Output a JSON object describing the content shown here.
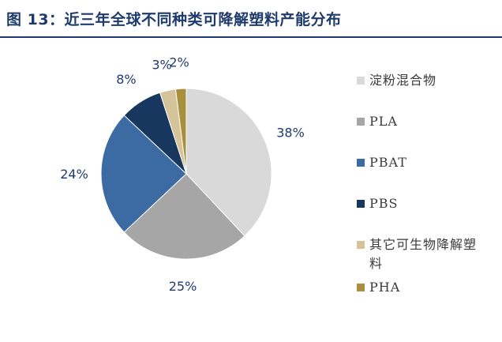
{
  "figure": {
    "title": "图 13：近三年全球不同种类可降解塑料产能分布"
  },
  "chart_data": {
    "type": "pie",
    "title": "",
    "categories": [
      "淀粉混合物",
      "PLA",
      "PBAT",
      "PBS",
      "其它可生物降解塑料",
      "PHA"
    ],
    "values": [
      38,
      25,
      24,
      8,
      3,
      2
    ],
    "value_labels": [
      "38%",
      "25%",
      "24%",
      "8%",
      "3%",
      "2%"
    ],
    "colors": [
      "#d9d9d9",
      "#a6a6a6",
      "#3c6aa3",
      "#17375e",
      "#d5c399",
      "#a8903f"
    ],
    "start_angle_deg": 0,
    "direction": "clockwise",
    "legend_position": "right"
  }
}
